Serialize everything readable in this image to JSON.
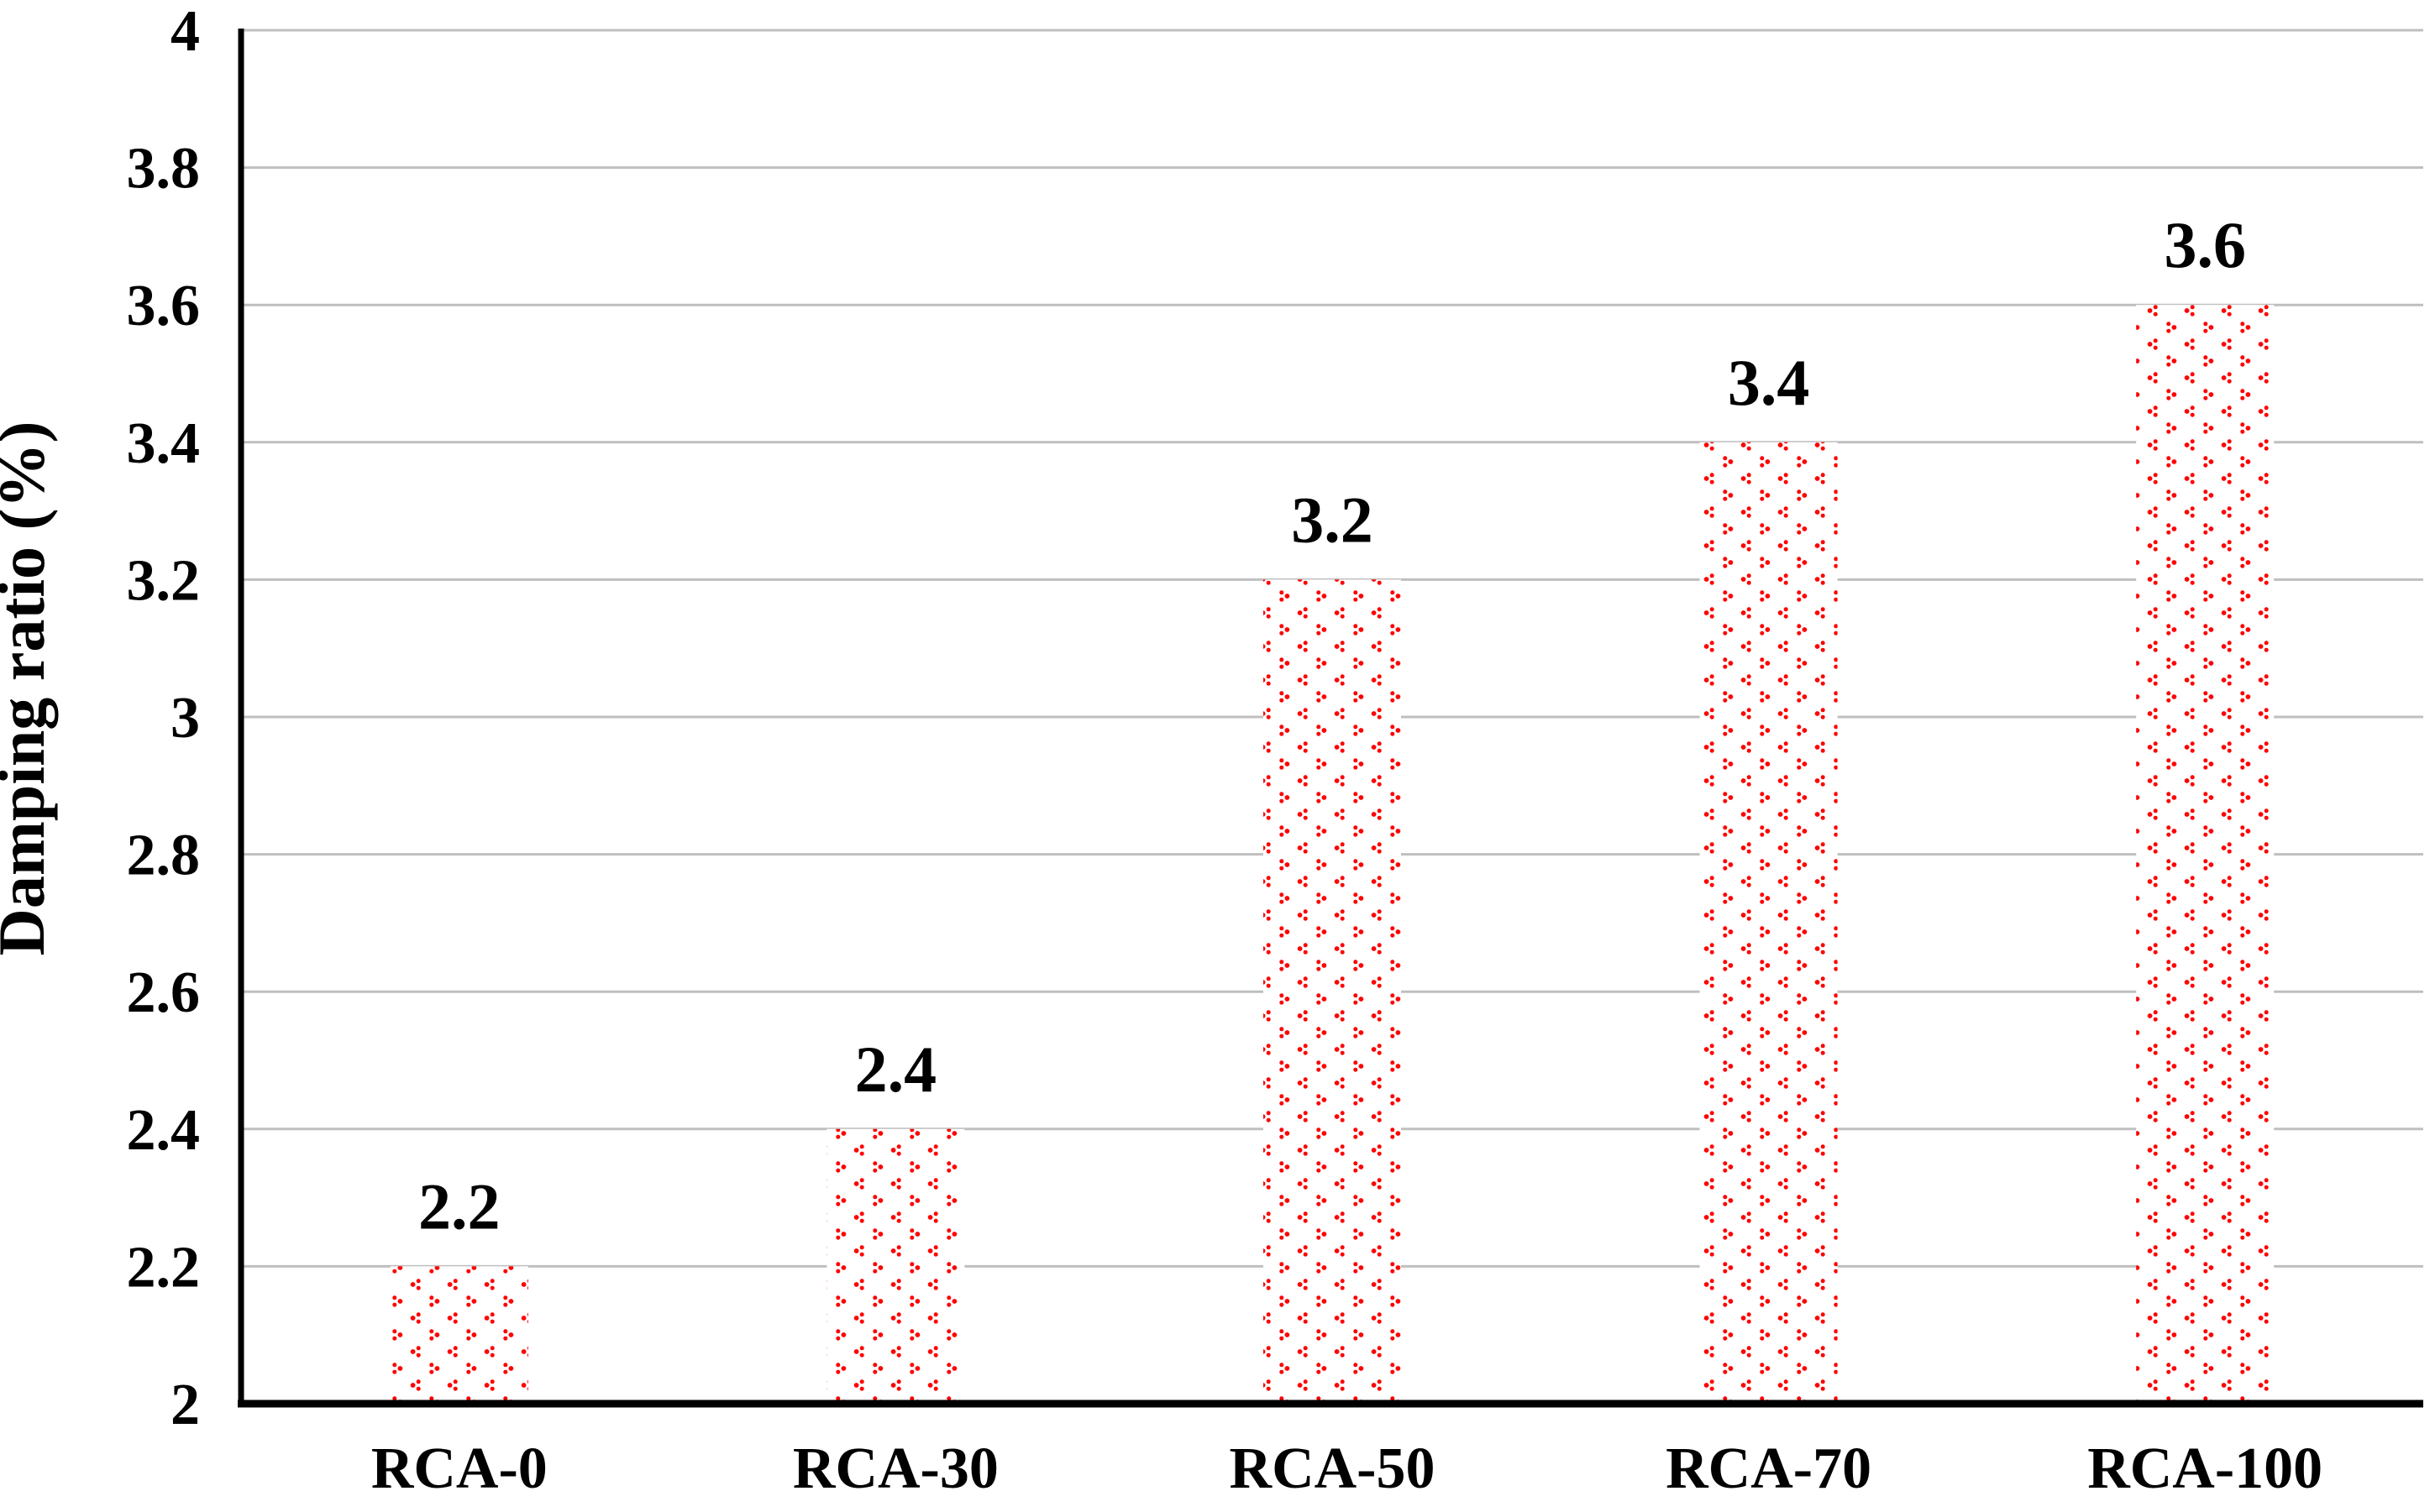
{
  "chart_data": {
    "type": "bar",
    "title": "",
    "categories": [
      "RCA-0",
      "RCA-30",
      "RCA-50",
      "RCA-70",
      "RCA-100"
    ],
    "values": [
      2.2,
      2.4,
      3.2,
      3.4,
      3.6
    ],
    "data_labels": [
      "2.2",
      "2.4",
      "3.2",
      "3.4",
      "3.6"
    ],
    "xlabel": "",
    "ylabel": "Damping ratio (%)",
    "ylim": [
      2,
      4
    ],
    "ytick_step": 0.2,
    "ytick_labels": [
      "2",
      "2.2",
      "2.4",
      "2.6",
      "2.8",
      "3",
      "3.2",
      "3.4",
      "3.6",
      "3.8",
      "4"
    ],
    "grid": "horizontal",
    "legend": "none",
    "bar_fill_style": "red-divot-dot-pattern",
    "colors": {
      "bar_pattern": "#FF0000",
      "bar_background": "#FFFFFF",
      "gridline": "#BFBFBF",
      "axis": "#000000",
      "text": "#000000"
    }
  }
}
